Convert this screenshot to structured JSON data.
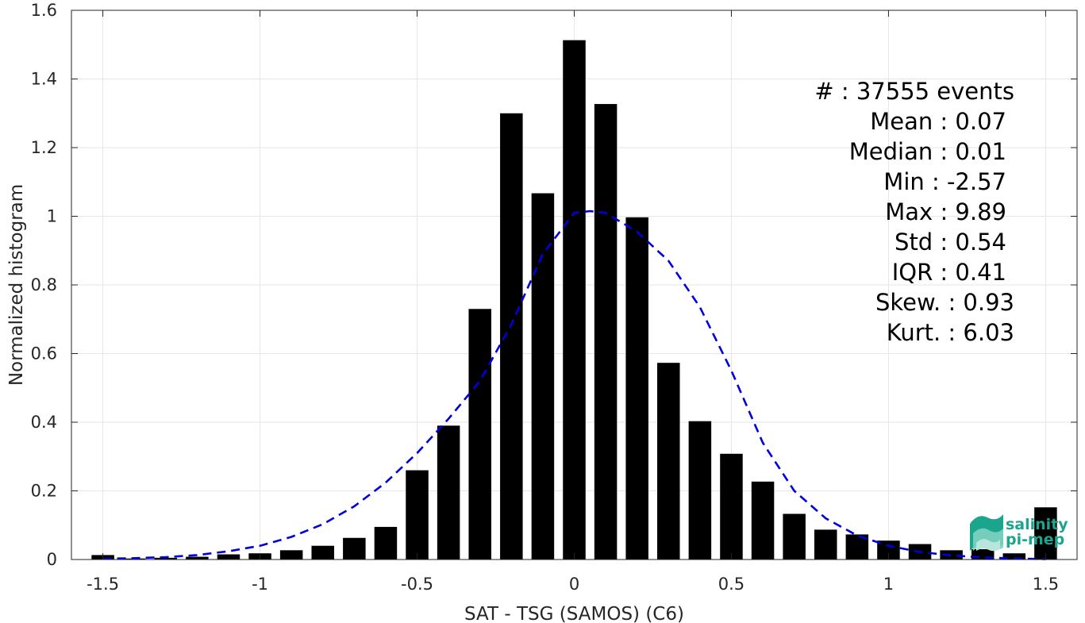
{
  "chart_data": {
    "type": "bar",
    "xlabel": "SAT - TSG (SAMOS) (C6)",
    "ylabel": "Normalized histogram",
    "xlim": [
      -1.6,
      1.6
    ],
    "ylim": [
      0,
      1.6
    ],
    "grid": true,
    "xticks": [
      -1.5,
      -1,
      -0.5,
      0,
      0.5,
      1,
      1.5
    ],
    "xtick_labels": [
      "-1.5",
      "-1",
      "-0.5",
      "0",
      "0.5",
      "1",
      "1.5"
    ],
    "yticks": [
      0,
      0.2,
      0.4,
      0.6,
      0.8,
      1,
      1.2,
      1.4,
      1.6
    ],
    "ytick_labels": [
      "0",
      "0.2",
      "0.4",
      "0.6",
      "0.8",
      "1",
      "1.2",
      "1.4",
      "1.6"
    ],
    "bin_centers": [
      -1.5,
      -1.4,
      -1.3,
      -1.2,
      -1.1,
      -1.0,
      -0.9,
      -0.8,
      -0.7,
      -0.6,
      -0.5,
      -0.4,
      -0.3,
      -0.2,
      -0.1,
      0.0,
      0.1,
      0.2,
      0.3,
      0.4,
      0.5,
      0.6,
      0.7,
      0.8,
      0.9,
      1.0,
      1.1,
      1.2,
      1.3,
      1.4,
      1.5
    ],
    "values": [
      0.013,
      0.003,
      0.005,
      0.008,
      0.015,
      0.018,
      0.027,
      0.04,
      0.063,
      0.095,
      0.26,
      0.39,
      0.73,
      1.3,
      1.067,
      1.513,
      1.327,
      0.997,
      0.573,
      0.403,
      0.308,
      0.227,
      0.133,
      0.087,
      0.073,
      0.055,
      0.045,
      0.027,
      0.03,
      0.018,
      0.152
    ],
    "bar_color": "#000000",
    "fit_curve": {
      "style": "dashed",
      "color": "#0000dd",
      "x": [
        -1.5,
        -1.4,
        -1.3,
        -1.2,
        -1.1,
        -1.0,
        -0.9,
        -0.8,
        -0.7,
        -0.6,
        -0.5,
        -0.4,
        -0.3,
        -0.2,
        -0.1,
        0.0,
        0.05,
        0.1,
        0.2,
        0.3,
        0.4,
        0.5,
        0.6,
        0.7,
        0.8,
        0.9,
        1.0,
        1.1,
        1.2,
        1.3,
        1.4,
        1.5
      ],
      "y": [
        0.002,
        0.004,
        0.007,
        0.013,
        0.024,
        0.04,
        0.066,
        0.103,
        0.155,
        0.224,
        0.31,
        0.41,
        0.52,
        0.685,
        0.89,
        1.01,
        1.015,
        1.01,
        0.955,
        0.87,
        0.735,
        0.55,
        0.34,
        0.2,
        0.12,
        0.07,
        0.04,
        0.022,
        0.012,
        0.006,
        0.003,
        0.001
      ]
    }
  },
  "stats": [
    "#  : 37555 events",
    "Mean : 0.07",
    "Median : 0.01",
    "Min : -2.57",
    "Max : 9.89",
    "Std : 0.54",
    "IQR : 0.41",
    "Skew. : 0.93",
    "Kurt. : 6.03"
  ],
  "logo": {
    "line1": "salinity",
    "line2": "pi-mep",
    "colors": [
      "#1aa58c",
      "#7fd1c0"
    ]
  }
}
